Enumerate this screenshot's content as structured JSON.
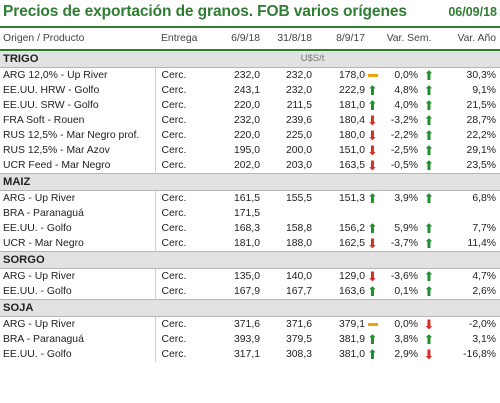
{
  "title": "Precios de exportación de granos. FOB varios orígenes",
  "date": "06/09/18",
  "headers": {
    "product": "Origen / Producto",
    "entrega": "Entrega",
    "c1": "6/9/18",
    "c2": "31/8/18",
    "c3": "8/9/17",
    "varsem": "Var. Sem.",
    "varano": "Var. Año"
  },
  "unit": "U$S/t",
  "colors": {
    "accent": "#2e7d32",
    "up": "#1e8f2a",
    "down": "#d22f27",
    "flat": "#f0a30a"
  },
  "sections": [
    {
      "name": "TRIGO",
      "rows": [
        {
          "product": "ARG 12,0% - Up River",
          "entrega": "Cerc.",
          "c1": "232,0",
          "c2": "232,0",
          "c3": "178,0",
          "t1": "flat",
          "vs": "0,0%",
          "t2": "up",
          "va": "30,3%"
        },
        {
          "product": "EE.UU. HRW - Golfo",
          "entrega": "Cerc.",
          "c1": "243,1",
          "c2": "232,0",
          "c3": "222,9",
          "t1": "up",
          "vs": "4,8%",
          "t2": "up",
          "va": "9,1%"
        },
        {
          "product": "EE.UU. SRW - Golfo",
          "entrega": "Cerc.",
          "c1": "220,0",
          "c2": "211,5",
          "c3": "181,0",
          "t1": "up",
          "vs": "4,0%",
          "t2": "up",
          "va": "21,5%"
        },
        {
          "product": "FRA Soft - Rouen",
          "entrega": "Cerc.",
          "c1": "232,0",
          "c2": "239,6",
          "c3": "180,4",
          "t1": "down",
          "vs": "-3,2%",
          "t2": "up",
          "va": "28,7%"
        },
        {
          "product": "RUS 12,5% - Mar Negro prof.",
          "entrega": "Cerc.",
          "c1": "220,0",
          "c2": "225,0",
          "c3": "180,0",
          "t1": "down",
          "vs": "-2,2%",
          "t2": "up",
          "va": "22,2%"
        },
        {
          "product": "RUS 12,5% - Mar Azov",
          "entrega": "Cerc.",
          "c1": "195,0",
          "c2": "200,0",
          "c3": "151,0",
          "t1": "down",
          "vs": "-2,5%",
          "t2": "up",
          "va": "29,1%"
        },
        {
          "product": "UCR Feed - Mar Negro",
          "entrega": "Cerc.",
          "c1": "202,0",
          "c2": "203,0",
          "c3": "163,5",
          "t1": "down",
          "vs": "-0,5%",
          "t2": "up",
          "va": "23,5%"
        }
      ]
    },
    {
      "name": "MAIZ",
      "rows": [
        {
          "product": "ARG - Up River",
          "entrega": "Cerc.",
          "c1": "161,5",
          "c2": "155,5",
          "c3": "151,3",
          "t1": "up",
          "vs": "3,9%",
          "t2": "up",
          "va": "6,8%"
        },
        {
          "product": "BRA - Paranaguá",
          "entrega": "Cerc.",
          "c1": "171,5",
          "c2": "",
          "c3": "",
          "t1": "",
          "vs": "",
          "t2": "",
          "va": ""
        },
        {
          "product": "EE.UU. - Golfo",
          "entrega": "Cerc.",
          "c1": "168,3",
          "c2": "158,8",
          "c3": "156,2",
          "t1": "up",
          "vs": "5,9%",
          "t2": "up",
          "va": "7,7%"
        },
        {
          "product": "UCR - Mar Negro",
          "entrega": "Cerc.",
          "c1": "181,0",
          "c2": "188,0",
          "c3": "162,5",
          "t1": "down",
          "vs": "-3,7%",
          "t2": "up",
          "va": "11,4%"
        }
      ]
    },
    {
      "name": "SORGO",
      "rows": [
        {
          "product": "ARG - Up River",
          "entrega": "Cerc.",
          "c1": "135,0",
          "c2": "140,0",
          "c3": "129,0",
          "t1": "down",
          "vs": "-3,6%",
          "t2": "up",
          "va": "4,7%"
        },
        {
          "product": "EE.UU. - Golfo",
          "entrega": "Cerc.",
          "c1": "167,9",
          "c2": "167,7",
          "c3": "163,6",
          "t1": "up",
          "vs": "0,1%",
          "t2": "up",
          "va": "2,6%"
        }
      ]
    },
    {
      "name": "SOJA",
      "rows": [
        {
          "product": "ARG - Up River",
          "entrega": "Cerc.",
          "c1": "371,6",
          "c2": "371,6",
          "c3": "379,1",
          "t1": "flat",
          "vs": "0,0%",
          "t2": "down",
          "va": "-2,0%"
        },
        {
          "product": "BRA - Paranaguá",
          "entrega": "Cerc.",
          "c1": "393,9",
          "c2": "379,5",
          "c3": "381,9",
          "t1": "up",
          "vs": "3,8%",
          "t2": "up",
          "va": "3,1%"
        },
        {
          "product": "EE.UU. - Golfo",
          "entrega": "Cerc.",
          "c1": "317,1",
          "c2": "308,3",
          "c3": "381,0",
          "t1": "up",
          "vs": "2,9%",
          "t2": "down",
          "va": "-16,8%"
        }
      ]
    }
  ]
}
